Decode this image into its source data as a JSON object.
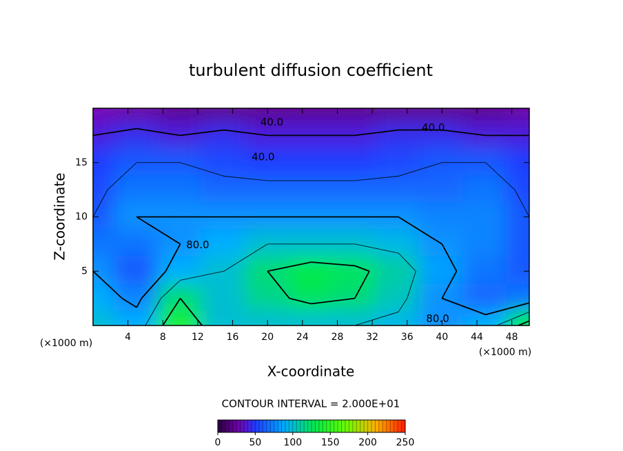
{
  "chart_data": {
    "type": "contour",
    "title": "turbulent diffusion coefficient",
    "xlabel": "X-coordinate",
    "ylabel": "Z-coordinate",
    "x_unit": "(×1000 m)",
    "xlim": [
      0,
      50
    ],
    "xticks": [
      4,
      8,
      12,
      16,
      20,
      24,
      28,
      32,
      36,
      40,
      44,
      48
    ],
    "ylim": [
      0,
      20
    ],
    "yticks": [
      5,
      10,
      15
    ],
    "x": [
      0,
      5,
      10,
      15,
      20,
      25,
      30,
      35,
      40,
      45,
      50
    ],
    "y": [
      20,
      17.5,
      15,
      12.5,
      10,
      7.5,
      5,
      2.5,
      0
    ],
    "z": [
      [
        30,
        25,
        20,
        20,
        20,
        20,
        20,
        20,
        20,
        20,
        25
      ],
      [
        40,
        45,
        40,
        45,
        40,
        40,
        40,
        45,
        45,
        40,
        40
      ],
      [
        50,
        60,
        60,
        55,
        50,
        50,
        50,
        55,
        60,
        60,
        50
      ],
      [
        55,
        70,
        70,
        65,
        65,
        65,
        65,
        65,
        65,
        70,
        55
      ],
      [
        60,
        80,
        80,
        80,
        80,
        80,
        80,
        80,
        75,
        75,
        60
      ],
      [
        70,
        70,
        80,
        90,
        100,
        100,
        100,
        95,
        80,
        75,
        60
      ],
      [
        80,
        60,
        90,
        100,
        120,
        130,
        125,
        110,
        85,
        70,
        60
      ],
      [
        90,
        75,
        120,
        100,
        115,
        125,
        120,
        105,
        80,
        65,
        70
      ],
      [
        100,
        90,
        140,
        100,
        100,
        100,
        100,
        95,
        80,
        90,
        130
      ]
    ],
    "contour_interval": {
      "value": 20,
      "label": "CONTOUR INTERVAL = 2.000E+01"
    },
    "contour_labels": [
      {
        "x": 20.5,
        "y": 18.7,
        "value": 40,
        "label": "40.0"
      },
      {
        "x": 39,
        "y": 18.2,
        "value": 40,
        "label": "40.0"
      },
      {
        "x": 19.5,
        "y": 15.5,
        "value": 40,
        "label": "40.0"
      },
      {
        "x": 12,
        "y": 7.4,
        "value": 80,
        "label": "80.0"
      },
      {
        "x": 39.5,
        "y": 0.6,
        "value": 80,
        "label": "80.0"
      }
    ],
    "clim": [
      0,
      250
    ],
    "colorbar_ticks": [
      0,
      50,
      100,
      150,
      200,
      250
    ]
  }
}
